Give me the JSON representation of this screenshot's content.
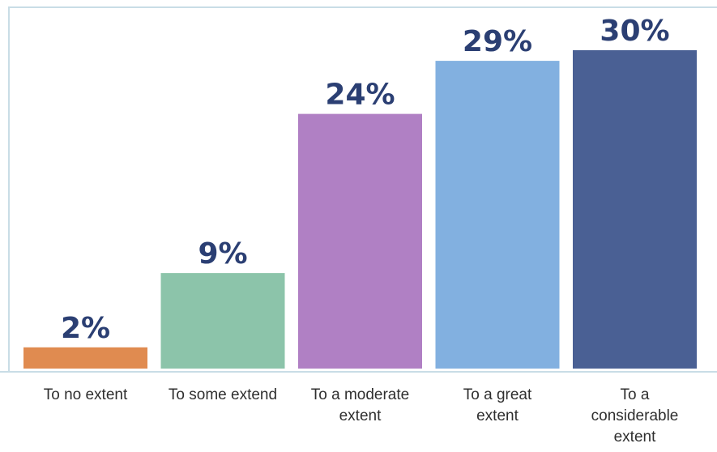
{
  "chart_data": {
    "type": "bar",
    "categories": [
      "To no extent",
      "To some extend",
      "To a moderate\nextent",
      "To a great\nextent",
      "To a\nconsiderable\nextent"
    ],
    "values": [
      2,
      9,
      24,
      29,
      30
    ],
    "value_labels": [
      "2%",
      "9%",
      "24%",
      "29%",
      "30%"
    ],
    "colors": [
      "#e08b50",
      "#8cc4aa",
      "#b080c4",
      "#82b0e0",
      "#4a6094"
    ],
    "unit": "%",
    "ylim": [
      0,
      30
    ],
    "grid": false,
    "legend": "none"
  }
}
